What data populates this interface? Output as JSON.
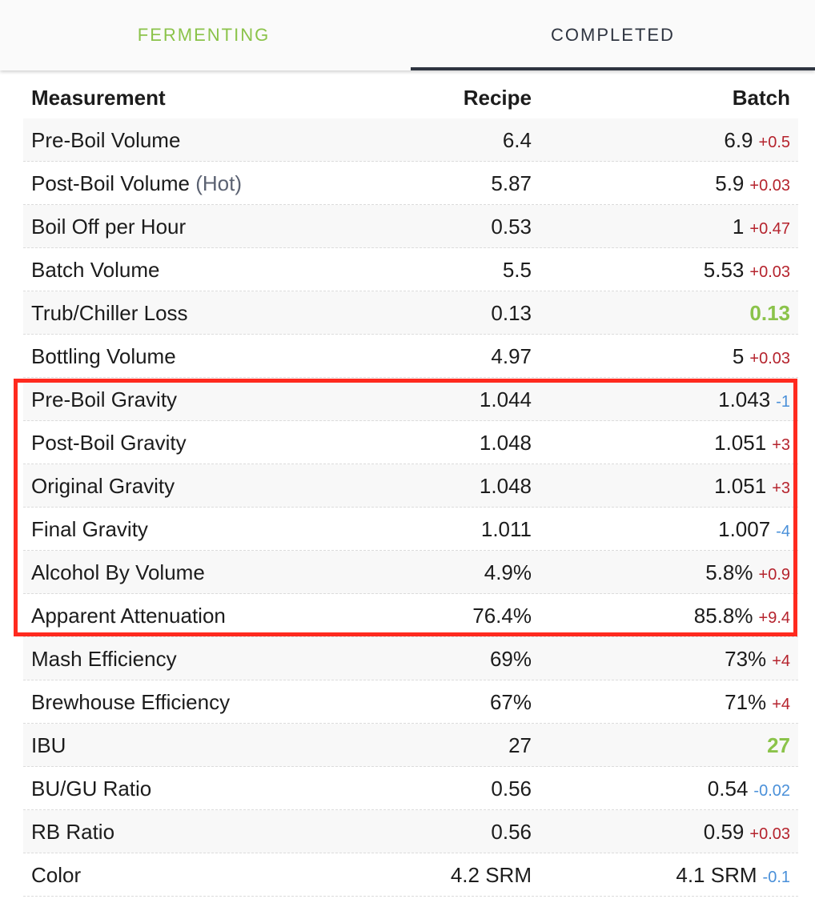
{
  "tabs": [
    {
      "label": "FERMENTING",
      "active": false
    },
    {
      "label": "COMPLETED",
      "active": true
    }
  ],
  "table": {
    "headers": {
      "measurement": "Measurement",
      "recipe": "Recipe",
      "batch": "Batch"
    },
    "rows": [
      {
        "name": "Pre-Boil Volume",
        "note": "",
        "recipe": "6.4",
        "batch": "6.9",
        "delta": "+0.5",
        "delta_type": "pos"
      },
      {
        "name": "Post-Boil Volume",
        "note": "(Hot)",
        "recipe": "5.87",
        "batch": "5.9",
        "delta": "+0.03",
        "delta_type": "pos"
      },
      {
        "name": "Boil Off per Hour",
        "note": "",
        "recipe": "0.53",
        "batch": "1",
        "delta": "+0.47",
        "delta_type": "pos"
      },
      {
        "name": "Batch Volume",
        "note": "",
        "recipe": "5.5",
        "batch": "5.53",
        "delta": "+0.03",
        "delta_type": "pos"
      },
      {
        "name": "Trub/Chiller Loss",
        "note": "",
        "recipe": "0.13",
        "batch": "0.13",
        "delta": "",
        "delta_type": "match"
      },
      {
        "name": "Bottling Volume",
        "note": "",
        "recipe": "4.97",
        "batch": "5",
        "delta": "+0.03",
        "delta_type": "pos"
      },
      {
        "name": "Pre-Boil Gravity",
        "note": "",
        "recipe": "1.044",
        "batch": "1.043",
        "delta": "-1",
        "delta_type": "neg"
      },
      {
        "name": "Post-Boil Gravity",
        "note": "",
        "recipe": "1.048",
        "batch": "1.051",
        "delta": "+3",
        "delta_type": "pos"
      },
      {
        "name": "Original Gravity",
        "note": "",
        "recipe": "1.048",
        "batch": "1.051",
        "delta": "+3",
        "delta_type": "pos"
      },
      {
        "name": "Final Gravity",
        "note": "",
        "recipe": "1.011",
        "batch": "1.007",
        "delta": "-4",
        "delta_type": "neg"
      },
      {
        "name": "Alcohol By Volume",
        "note": "",
        "recipe": "4.9%",
        "batch": "5.8%",
        "delta": "+0.9",
        "delta_type": "pos"
      },
      {
        "name": "Apparent Attenuation",
        "note": "",
        "recipe": "76.4%",
        "batch": "85.8%",
        "delta": "+9.4",
        "delta_type": "pos"
      },
      {
        "name": "Mash Efficiency",
        "note": "",
        "recipe": "69%",
        "batch": "73%",
        "delta": "+4",
        "delta_type": "pos"
      },
      {
        "name": "Brewhouse Efficiency",
        "note": "",
        "recipe": "67%",
        "batch": "71%",
        "delta": "+4",
        "delta_type": "pos"
      },
      {
        "name": "IBU",
        "note": "",
        "recipe": "27",
        "batch": "27",
        "delta": "",
        "delta_type": "match"
      },
      {
        "name": "BU/GU Ratio",
        "note": "",
        "recipe": "0.56",
        "batch": "0.54",
        "delta": "-0.02",
        "delta_type": "neg"
      },
      {
        "name": "RB Ratio",
        "note": "",
        "recipe": "0.56",
        "batch": "0.59",
        "delta": "+0.03",
        "delta_type": "pos"
      },
      {
        "name": "Color",
        "note": "",
        "recipe": "4.2 SRM",
        "batch": "4.1 SRM",
        "delta": "-0.1",
        "delta_type": "neg"
      }
    ]
  },
  "colors": {
    "accent_green": "#8bc34a",
    "delta_positive": "#b5232d",
    "delta_negative": "#4a90d9",
    "highlight": "#ff2a1f"
  }
}
